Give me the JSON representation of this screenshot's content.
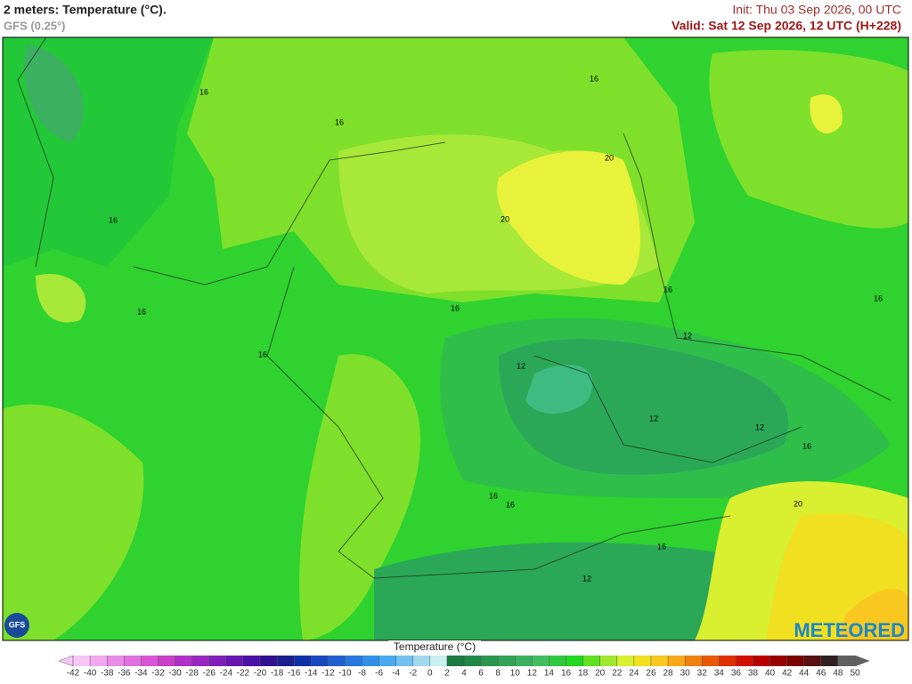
{
  "header": {
    "title": "2 meters: Temperature (°C).",
    "model": "GFS (0.25°)",
    "init": "Init: Thu 03 Sep 2026, 00 UTC",
    "valid": "Valid: Sat 12 Sep 2026, 12 UTC (H+228)"
  },
  "map": {
    "contour_labels": [
      16,
      16,
      16,
      16,
      20,
      20,
      16,
      16,
      16,
      16,
      12,
      16,
      12,
      12,
      12,
      16,
      16,
      16,
      20,
      16,
      12
    ]
  },
  "logos": {
    "brand": "METEORED",
    "model_badge": "GFS"
  },
  "colorbar": {
    "label": "Temperature (°C)",
    "ticks": [
      -42,
      -40,
      -38,
      -36,
      -34,
      -32,
      -30,
      -28,
      -26,
      -24,
      -22,
      -20,
      -18,
      -16,
      -14,
      -12,
      -10,
      -8,
      -6,
      -4,
      -2,
      0,
      2,
      4,
      6,
      8,
      10,
      12,
      14,
      16,
      18,
      20,
      22,
      24,
      26,
      28,
      30,
      32,
      34,
      36,
      38,
      40,
      42,
      44,
      46,
      48,
      50
    ],
    "colors": [
      "#f5c6f5",
      "#f0a8f0",
      "#e88ae8",
      "#e070e0",
      "#d855d8",
      "#c840c8",
      "#b030c8",
      "#9a28c0",
      "#8020b8",
      "#6818b0",
      "#4a10a8",
      "#301090",
      "#1a2090",
      "#1030a8",
      "#1848c0",
      "#2060d0",
      "#2878e0",
      "#3090e8",
      "#48a8f0",
      "#70c0f0",
      "#a0d8f0",
      "#c8f0f0",
      "#1a7a40",
      "#228848",
      "#2a9650",
      "#32a458",
      "#3ab060",
      "#42be60",
      "#30c840",
      "#20d820",
      "#60e020",
      "#a0e830",
      "#d8f030",
      "#f0e020",
      "#f8c820",
      "#f8a818",
      "#f08010",
      "#e85808",
      "#e03000",
      "#d01000",
      "#b80000",
      "#980000",
      "#780000",
      "#581010",
      "#302020",
      "#606060"
    ]
  }
}
